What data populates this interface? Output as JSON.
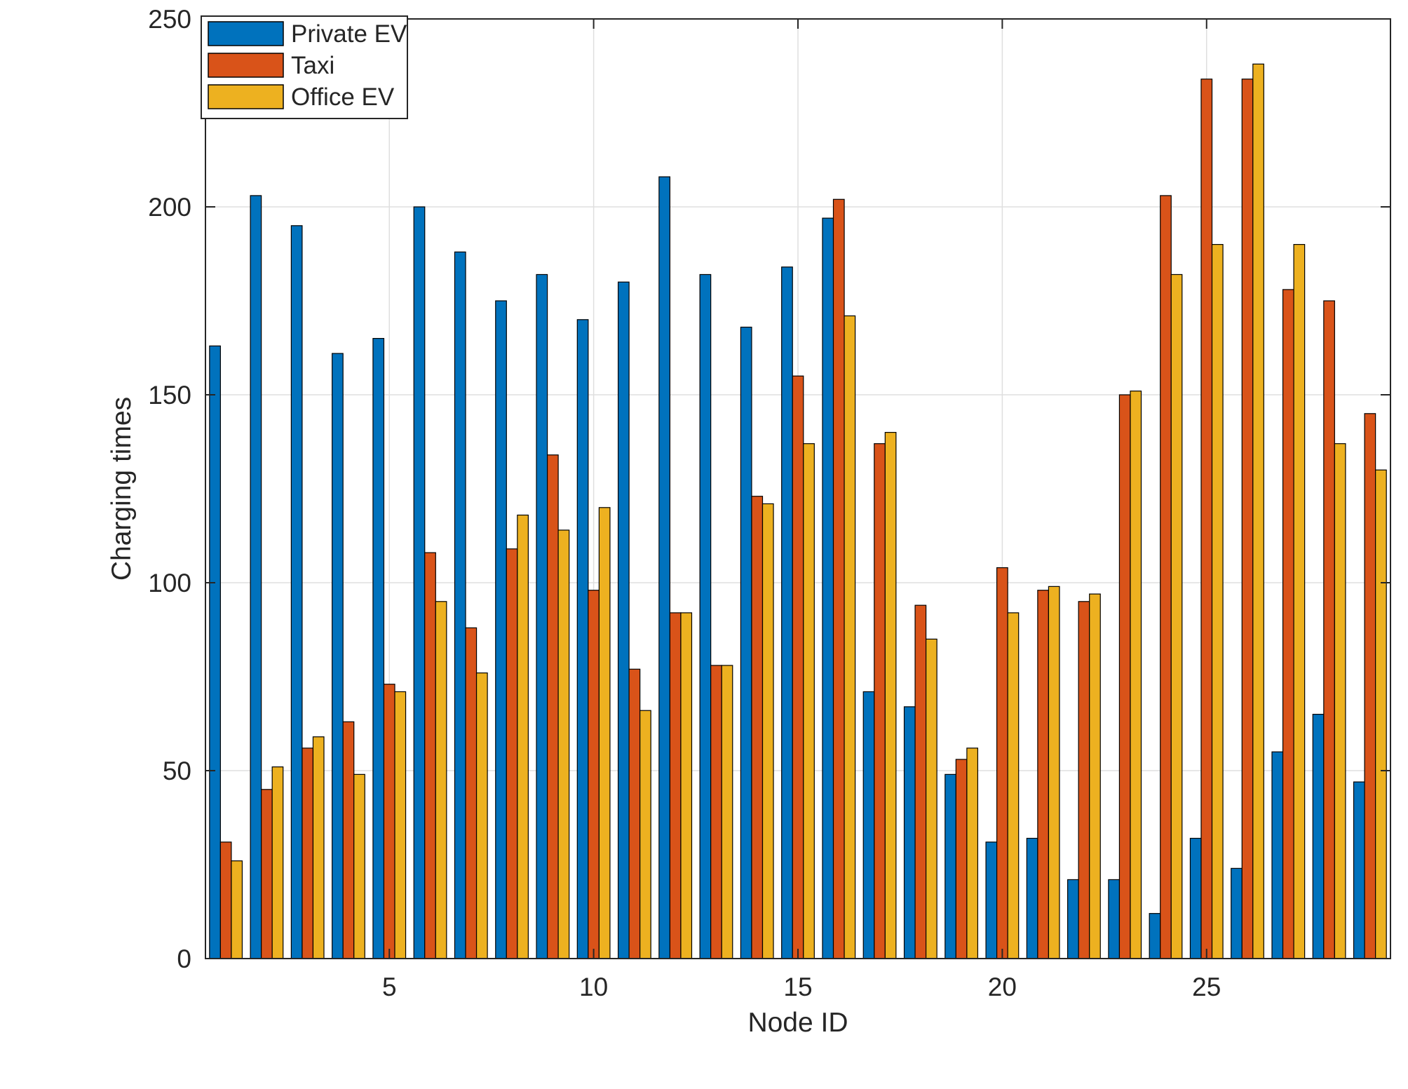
{
  "chart_data": {
    "type": "bar",
    "title": "",
    "xlabel": "Node ID",
    "ylabel": "Charging times",
    "xlim": [
      0.5,
      29.5
    ],
    "ylim": [
      0,
      250
    ],
    "grid": true,
    "legend_position": "top-left",
    "x": [
      1,
      2,
      3,
      4,
      5,
      6,
      7,
      8,
      9,
      10,
      11,
      12,
      13,
      14,
      15,
      16,
      17,
      18,
      19,
      20,
      21,
      22,
      23,
      24,
      25,
      26,
      27,
      28,
      29
    ],
    "x_ticks": [
      5,
      10,
      15,
      20,
      25
    ],
    "x_tick_labels": [
      "5",
      "10",
      "15",
      "20",
      "25"
    ],
    "y_ticks": [
      0,
      50,
      100,
      150,
      200,
      250
    ],
    "y_tick_labels": [
      "0",
      "50",
      "100",
      "150",
      "200",
      "250"
    ],
    "series": [
      {
        "name": "Private EV",
        "color": "#0072BD",
        "values": [
          163,
          203,
          195,
          161,
          165,
          200,
          188,
          175,
          182,
          170,
          180,
          208,
          182,
          168,
          184,
          197,
          71,
          67,
          49,
          31,
          32,
          21,
          21,
          12,
          32,
          24,
          55,
          65,
          47
        ]
      },
      {
        "name": "Taxi",
        "color": "#D95319",
        "values": [
          31,
          45,
          56,
          63,
          73,
          108,
          88,
          109,
          134,
          98,
          77,
          92,
          78,
          123,
          155,
          202,
          137,
          94,
          53,
          104,
          98,
          95,
          150,
          203,
          234,
          234,
          178,
          175,
          145
        ]
      },
      {
        "name": "Office EV",
        "color": "#EDB120",
        "values": [
          26,
          51,
          59,
          49,
          71,
          95,
          76,
          118,
          114,
          120,
          66,
          92,
          78,
          121,
          137,
          171,
          140,
          85,
          56,
          92,
          99,
          97,
          151,
          182,
          190,
          238,
          190,
          137,
          130
        ]
      }
    ]
  }
}
